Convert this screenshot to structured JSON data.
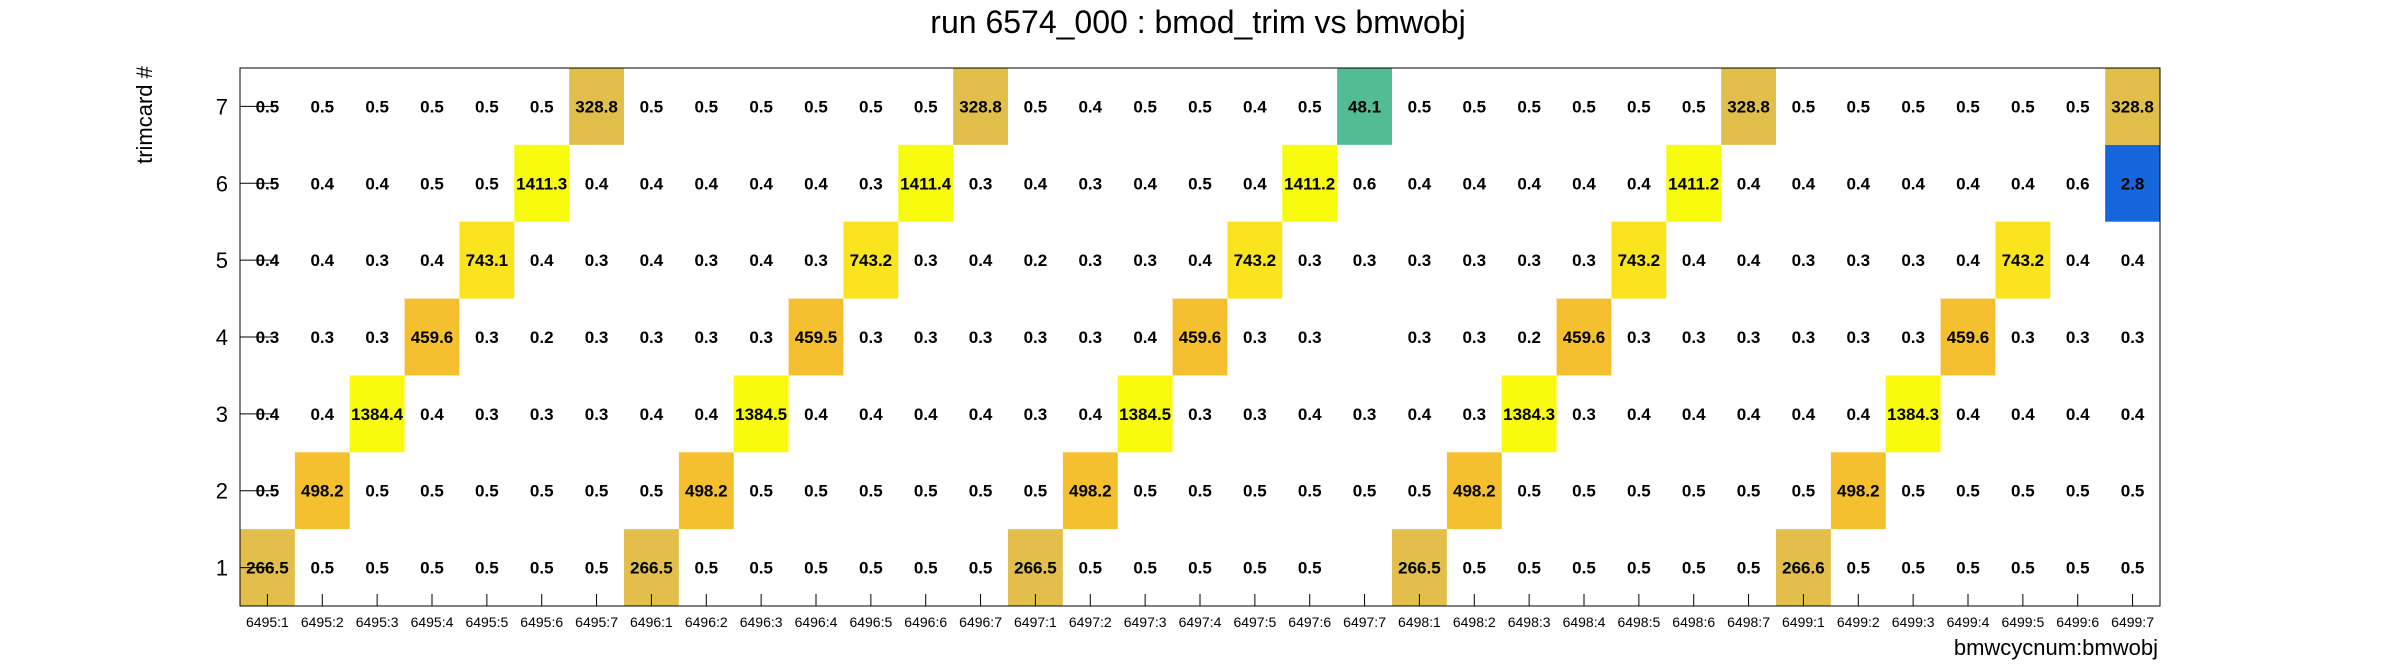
{
  "chart_data": {
    "type": "heatmap",
    "title": "run 6574_000 : bmod_trim vs bmwobj",
    "xlabel": "bmwcycnum:bmwobj",
    "ylabel": "trimcard #",
    "x_categories": [
      "6495:1",
      "6495:2",
      "6495:3",
      "6495:4",
      "6495:5",
      "6495:6",
      "6495:7",
      "6496:1",
      "6496:2",
      "6496:3",
      "6496:4",
      "6496:5",
      "6496:6",
      "6496:7",
      "6497:1",
      "6497:2",
      "6497:3",
      "6497:4",
      "6497:5",
      "6497:6",
      "6497:7",
      "6498:1",
      "6498:2",
      "6498:3",
      "6498:4",
      "6498:5",
      "6498:6",
      "6498:7",
      "6499:1",
      "6499:2",
      "6499:3",
      "6499:4",
      "6499:5",
      "6499:6",
      "6499:7"
    ],
    "y_categories": [
      "1",
      "2",
      "3",
      "4",
      "5",
      "6",
      "7"
    ],
    "values": [
      [
        "266.5",
        "0.5",
        "0.5",
        "0.5",
        "0.5",
        "0.5",
        "0.5",
        "266.5",
        "0.5",
        "0.5",
        "0.5",
        "0.5",
        "0.5",
        "0.5",
        "266.5",
        "0.5",
        "0.5",
        "0.5",
        "0.5",
        "0.5",
        null,
        "266.5",
        "0.5",
        "0.5",
        "0.5",
        "0.5",
        "0.5",
        "0.5",
        "266.6",
        "0.5",
        "0.5",
        "0.5",
        "0.5",
        "0.5",
        "0.5"
      ],
      [
        "0.5",
        "498.2",
        "0.5",
        "0.5",
        "0.5",
        "0.5",
        "0.5",
        "0.5",
        "498.2",
        "0.5",
        "0.5",
        "0.5",
        "0.5",
        "0.5",
        "0.5",
        "498.2",
        "0.5",
        "0.5",
        "0.5",
        "0.5",
        "0.5",
        "0.5",
        "498.2",
        "0.5",
        "0.5",
        "0.5",
        "0.5",
        "0.5",
        "0.5",
        "498.2",
        "0.5",
        "0.5",
        "0.5",
        "0.5",
        "0.5"
      ],
      [
        "0.4",
        "0.4",
        "1384.4",
        "0.4",
        "0.3",
        "0.3",
        "0.3",
        "0.4",
        "0.4",
        "1384.5",
        "0.4",
        "0.4",
        "0.4",
        "0.4",
        "0.3",
        "0.4",
        "1384.5",
        "0.3",
        "0.3",
        "0.4",
        "0.3",
        "0.4",
        "0.3",
        "1384.3",
        "0.3",
        "0.4",
        "0.4",
        "0.4",
        "0.4",
        "0.4",
        "1384.3",
        "0.4",
        "0.4",
        "0.4",
        "0.4"
      ],
      [
        "0.3",
        "0.3",
        "0.3",
        "459.6",
        "0.3",
        "0.2",
        "0.3",
        "0.3",
        "0.3",
        "0.3",
        "459.5",
        "0.3",
        "0.3",
        "0.3",
        "0.3",
        "0.3",
        "0.4",
        "459.6",
        "0.3",
        "0.3",
        null,
        "0.3",
        "0.3",
        "0.2",
        "459.6",
        "0.3",
        "0.3",
        "0.3",
        "0.3",
        "0.3",
        "0.3",
        "459.6",
        "0.3",
        "0.3",
        "0.3"
      ],
      [
        "0.4",
        "0.4",
        "0.3",
        "0.4",
        "743.1",
        "0.4",
        "0.3",
        "0.4",
        "0.3",
        "0.4",
        "0.3",
        "743.2",
        "0.3",
        "0.4",
        "0.2",
        "0.3",
        "0.3",
        "0.4",
        "743.2",
        "0.3",
        "0.3",
        "0.3",
        "0.3",
        "0.3",
        "0.3",
        "743.2",
        "0.4",
        "0.4",
        "0.3",
        "0.3",
        "0.3",
        "0.4",
        "743.2",
        "0.4",
        "0.4"
      ],
      [
        "0.5",
        "0.4",
        "0.4",
        "0.5",
        "0.5",
        "1411.3",
        "0.4",
        "0.4",
        "0.4",
        "0.4",
        "0.4",
        "0.3",
        "1411.4",
        "0.3",
        "0.4",
        "0.3",
        "0.4",
        "0.5",
        "0.4",
        "1411.2",
        "0.6",
        "0.4",
        "0.4",
        "0.4",
        "0.4",
        "0.4",
        "1411.2",
        "0.4",
        "0.4",
        "0.4",
        "0.4",
        "0.4",
        "0.4",
        "0.6",
        "2.8"
      ],
      [
        "0.5",
        "0.5",
        "0.5",
        "0.5",
        "0.5",
        "0.5",
        "328.8",
        "0.5",
        "0.5",
        "0.5",
        "0.5",
        "0.5",
        "0.5",
        "328.8",
        "0.5",
        "0.4",
        "0.5",
        "0.5",
        "0.4",
        "0.5",
        "48.1",
        "0.5",
        "0.5",
        "0.5",
        "0.5",
        "0.5",
        "0.5",
        "328.8",
        "0.5",
        "0.5",
        "0.5",
        "0.5",
        "0.5",
        "0.5",
        "328.8"
      ]
    ],
    "colors": {
      "266": "#e1bf4a",
      "328": "#e1bf4a",
      "459": "#f5c02f",
      "498": "#f5c02f",
      "743": "#f9e41e",
      "1384": "#f9fb0e",
      "1411": "#f9fb0e",
      "48": "#52bd94",
      "2.8": "#1566dc"
    },
    "grid": false,
    "legend": "none"
  }
}
